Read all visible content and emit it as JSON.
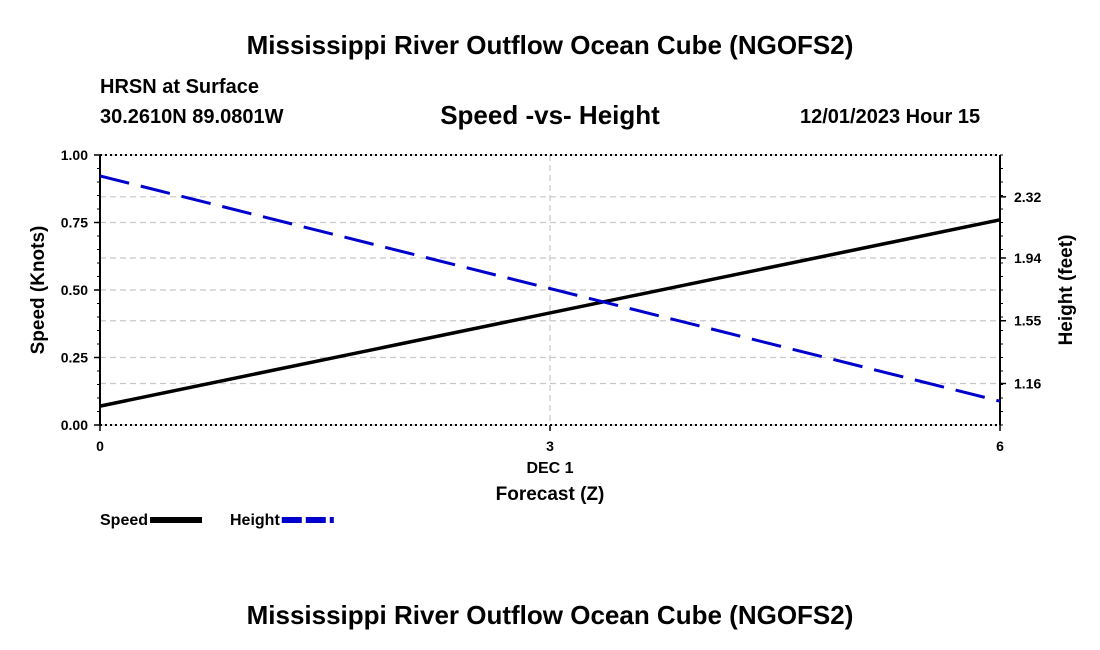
{
  "header": {
    "title": "Mississippi River Outflow Ocean Cube (NGOFS2)",
    "station_name": "HRSN at Surface",
    "station_coords": "30.2610N  89.0801W",
    "datetime": "12/01/2023 Hour 15"
  },
  "footer": {
    "title": "Mississippi River Outflow Ocean Cube (NGOFS2)"
  },
  "chart_data": {
    "type": "line",
    "title": "Speed -vs- Height",
    "xlabel": "Forecast (Z)",
    "x_date_label": "DEC 1",
    "ylabel": "Speed (Knots)",
    "y2label": "Height (feet)",
    "x": [
      0,
      6
    ],
    "xlim": [
      0,
      6
    ],
    "x_ticks": [
      "0",
      "3",
      "6"
    ],
    "ylim": [
      0,
      1
    ],
    "y_ticks": [
      "0.00",
      "0.25",
      "0.50",
      "0.75",
      "1.00"
    ],
    "y2lim": [
      0.902,
      2.58
    ],
    "y2_ticks": [
      "1.16",
      "1.55",
      "1.94",
      "2.32"
    ],
    "grid": true,
    "series": [
      {
        "name": "Speed",
        "axis": "left",
        "color": "#000000",
        "style": "solid",
        "values": [
          0.07,
          0.76
        ]
      },
      {
        "name": "Height",
        "axis": "right",
        "color": "#0000cc",
        "style": "dashed",
        "values": [
          2.45,
          1.05
        ]
      }
    ],
    "legend": [
      {
        "label": "Speed"
      },
      {
        "label": "Height"
      }
    ],
    "legend_position": "bottom-left"
  }
}
